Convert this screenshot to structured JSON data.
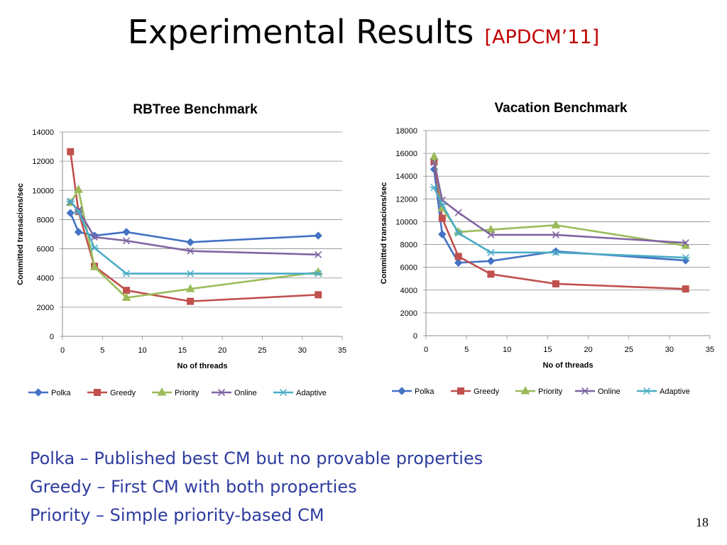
{
  "slide": {
    "title": "Experimental Results",
    "citation": "[APDCM’11]",
    "page_number": "18",
    "bullets": [
      "Polka – Published best CM but no provable properties",
      "Greedy – First CM with both properties",
      "Priority – Simple priority-based CM"
    ]
  },
  "series_style": [
    {
      "color": "#4472c4",
      "marker": "diamond"
    },
    {
      "color": "#c0504d",
      "marker": "square"
    },
    {
      "color": "#9bbb59",
      "marker": "triangle"
    },
    {
      "color": "#8064a2",
      "marker": "x"
    },
    {
      "color": "#4bacc6",
      "marker": "asterisk"
    }
  ],
  "chart_data": [
    {
      "type": "line",
      "title": "RBTree Benchmark",
      "xlabel": "No of threads",
      "ylabel": "Committed transacions/sec",
      "xlim": [
        0,
        35
      ],
      "ylim": [
        0,
        14000
      ],
      "xticks": [
        0,
        5,
        10,
        15,
        20,
        25,
        30,
        35
      ],
      "yticks": [
        0,
        2000,
        4000,
        6000,
        8000,
        10000,
        12000,
        14000
      ],
      "grid": "horizontal",
      "legend": "bottom",
      "x": [
        1,
        2,
        4,
        8,
        16,
        32
      ],
      "series": [
        {
          "name": "Polka",
          "values": [
            8450,
            7150,
            6900,
            7150,
            6450,
            6900
          ]
        },
        {
          "name": "Greedy",
          "values": [
            12650,
            8550,
            4800,
            3150,
            2400,
            2850
          ]
        },
        {
          "name": "Priority",
          "values": [
            9150,
            10050,
            4750,
            2650,
            3250,
            4400
          ]
        },
        {
          "name": "Online",
          "values": [
            9200,
            8650,
            6800,
            6550,
            5850,
            5600
          ]
        },
        {
          "name": "Adaptive",
          "values": [
            9250,
            8550,
            6050,
            4300,
            4300,
            4300
          ]
        }
      ]
    },
    {
      "type": "line",
      "title": "Vacation Benchmark",
      "xlabel": "No of threads",
      "ylabel": "Committed transacions/sec",
      "xlim": [
        0,
        35
      ],
      "ylim": [
        0,
        18000
      ],
      "xticks": [
        0,
        5,
        10,
        15,
        20,
        25,
        30,
        35
      ],
      "yticks": [
        0,
        2000,
        4000,
        6000,
        8000,
        10000,
        12000,
        14000,
        16000,
        18000
      ],
      "grid": "horizontal",
      "legend": "bottom",
      "x": [
        1,
        2,
        4,
        8,
        16,
        32
      ],
      "series": [
        {
          "name": "Polka",
          "values": [
            14600,
            8900,
            6400,
            6550,
            7400,
            6600
          ]
        },
        {
          "name": "Greedy",
          "values": [
            15300,
            10300,
            6950,
            5400,
            4550,
            4100
          ]
        },
        {
          "name": "Priority",
          "values": [
            15700,
            11200,
            9100,
            9300,
            9700,
            7900
          ]
        },
        {
          "name": "Online",
          "values": [
            15200,
            11900,
            10800,
            8850,
            8850,
            8150
          ]
        },
        {
          "name": "Adaptive",
          "values": [
            13000,
            11500,
            9000,
            7300,
            7300,
            6850
          ]
        }
      ]
    }
  ]
}
